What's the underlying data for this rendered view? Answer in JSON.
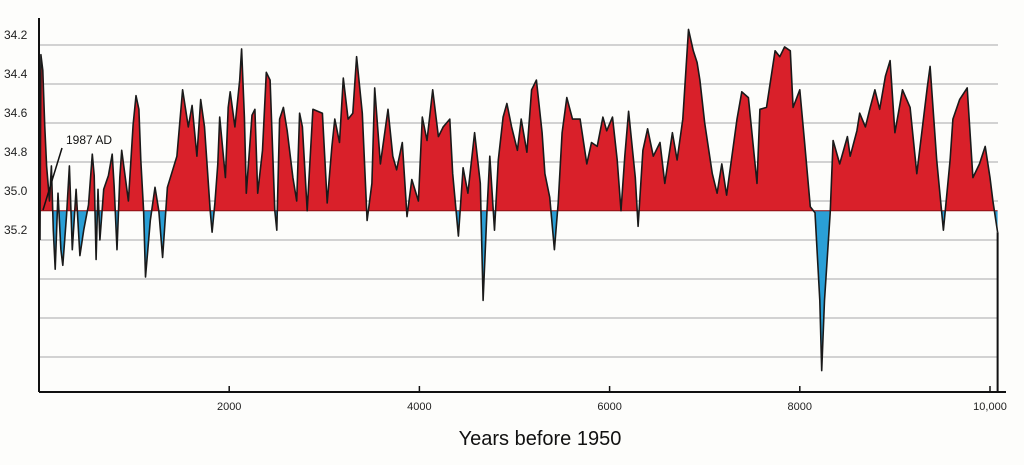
{
  "chart_data": {
    "type": "area",
    "title": "",
    "xlabel": "Years before 1950",
    "ylabel": "",
    "x_ticks": [
      "2000",
      "4000",
      "6000",
      "8000",
      "10,000"
    ],
    "x_tick_values": [
      2000,
      4000,
      6000,
      8000,
      10000
    ],
    "y_ticks": [
      "34.2",
      "34.4",
      "34.6",
      "34.8",
      "35.0",
      "35.2"
    ],
    "y_tick_values": [
      34.2,
      34.4,
      34.6,
      34.8,
      35.0,
      35.2
    ],
    "y_gridlines": [
      34.2,
      34.4,
      34.6,
      34.8,
      35.0,
      35.2,
      35.4,
      35.6,
      35.8
    ],
    "xlim": [
      0,
      10100
    ],
    "ylim": [
      34.05,
      35.95
    ],
    "y_inverted": true,
    "grid": true,
    "fill_baseline": 35.05,
    "colors": {
      "above": "#d9202a",
      "below": "#2a9fd6",
      "line": "#1a1a1a"
    },
    "annotation": {
      "text": "1987 AD",
      "x": 30,
      "y": 35.05
    },
    "points": [
      [
        10,
        35.2
      ],
      [
        20,
        34.25
      ],
      [
        40,
        34.33
      ],
      [
        60,
        34.61
      ],
      [
        80,
        34.82
      ],
      [
        110,
        35.0
      ],
      [
        130,
        34.82
      ],
      [
        150,
        35.15
      ],
      [
        170,
        35.35
      ],
      [
        200,
        34.96
      ],
      [
        230,
        35.25
      ],
      [
        250,
        35.33
      ],
      [
        290,
        35.07
      ],
      [
        320,
        34.82
      ],
      [
        350,
        35.25
      ],
      [
        390,
        34.94
      ],
      [
        430,
        35.28
      ],
      [
        470,
        35.15
      ],
      [
        520,
        35.02
      ],
      [
        560,
        34.76
      ],
      [
        580,
        34.87
      ],
      [
        600,
        35.3
      ],
      [
        620,
        34.94
      ],
      [
        640,
        35.2
      ],
      [
        680,
        34.94
      ],
      [
        730,
        34.87
      ],
      [
        770,
        34.76
      ],
      [
        790,
        34.92
      ],
      [
        820,
        35.25
      ],
      [
        850,
        34.88
      ],
      [
        870,
        34.74
      ],
      [
        940,
        35.0
      ],
      [
        990,
        34.61
      ],
      [
        1020,
        34.46
      ],
      [
        1050,
        34.53
      ],
      [
        1070,
        34.79
      ],
      [
        1100,
        35.05
      ],
      [
        1120,
        35.39
      ],
      [
        1170,
        35.1
      ],
      [
        1220,
        34.93
      ],
      [
        1260,
        35.05
      ],
      [
        1300,
        35.29
      ],
      [
        1350,
        34.93
      ],
      [
        1450,
        34.77
      ],
      [
        1510,
        34.43
      ],
      [
        1570,
        34.62
      ],
      [
        1610,
        34.51
      ],
      [
        1660,
        34.77
      ],
      [
        1700,
        34.48
      ],
      [
        1740,
        34.62
      ],
      [
        1800,
        35.05
      ],
      [
        1820,
        35.16
      ],
      [
        1850,
        35.01
      ],
      [
        1880,
        34.81
      ],
      [
        1900,
        34.57
      ],
      [
        1960,
        34.88
      ],
      [
        1990,
        34.52
      ],
      [
        2010,
        34.44
      ],
      [
        2060,
        34.62
      ],
      [
        2110,
        34.38
      ],
      [
        2130,
        34.22
      ],
      [
        2160,
        34.57
      ],
      [
        2180,
        34.96
      ],
      [
        2240,
        34.56
      ],
      [
        2270,
        34.53
      ],
      [
        2300,
        34.96
      ],
      [
        2350,
        34.74
      ],
      [
        2390,
        34.34
      ],
      [
        2430,
        34.38
      ],
      [
        2480,
        35.05
      ],
      [
        2500,
        35.15
      ],
      [
        2530,
        34.58
      ],
      [
        2570,
        34.52
      ],
      [
        2610,
        34.64
      ],
      [
        2670,
        34.88
      ],
      [
        2710,
        35.0
      ],
      [
        2740,
        34.55
      ],
      [
        2770,
        34.62
      ],
      [
        2820,
        35.05
      ],
      [
        2880,
        34.53
      ],
      [
        2980,
        34.55
      ],
      [
        3030,
        35.01
      ],
      [
        3080,
        34.72
      ],
      [
        3110,
        34.58
      ],
      [
        3160,
        34.7
      ],
      [
        3200,
        34.37
      ],
      [
        3250,
        34.58
      ],
      [
        3300,
        34.55
      ],
      [
        3340,
        34.26
      ],
      [
        3400,
        34.55
      ],
      [
        3450,
        35.1
      ],
      [
        3500,
        34.91
      ],
      [
        3530,
        34.42
      ],
      [
        3590,
        34.81
      ],
      [
        3670,
        34.53
      ],
      [
        3720,
        34.77
      ],
      [
        3760,
        34.84
      ],
      [
        3820,
        34.7
      ],
      [
        3870,
        35.08
      ],
      [
        3920,
        34.89
      ],
      [
        3990,
        35.0
      ],
      [
        4030,
        34.57
      ],
      [
        4080,
        34.69
      ],
      [
        4140,
        34.43
      ],
      [
        4200,
        34.67
      ],
      [
        4250,
        34.62
      ],
      [
        4320,
        34.58
      ],
      [
        4350,
        34.86
      ],
      [
        4410,
        35.18
      ],
      [
        4460,
        34.83
      ],
      [
        4510,
        34.96
      ],
      [
        4580,
        34.65
      ],
      [
        4640,
        34.91
      ],
      [
        4670,
        35.51
      ],
      [
        4710,
        35.06
      ],
      [
        4740,
        34.77
      ],
      [
        4790,
        35.15
      ],
      [
        4830,
        34.79
      ],
      [
        4880,
        34.57
      ],
      [
        4920,
        34.5
      ],
      [
        4970,
        34.62
      ],
      [
        5030,
        34.74
      ],
      [
        5070,
        34.58
      ],
      [
        5130,
        34.75
      ],
      [
        5180,
        34.43
      ],
      [
        5230,
        34.38
      ],
      [
        5290,
        34.65
      ],
      [
        5320,
        34.86
      ],
      [
        5370,
        34.98
      ],
      [
        5420,
        35.25
      ],
      [
        5460,
        35.01
      ],
      [
        5500,
        34.65
      ],
      [
        5550,
        34.47
      ],
      [
        5610,
        34.58
      ],
      [
        5690,
        34.58
      ],
      [
        5760,
        34.81
      ],
      [
        5810,
        34.7
      ],
      [
        5870,
        34.72
      ],
      [
        5930,
        34.57
      ],
      [
        5970,
        34.64
      ],
      [
        6030,
        34.57
      ],
      [
        6080,
        34.79
      ],
      [
        6120,
        35.05
      ],
      [
        6160,
        34.77
      ],
      [
        6200,
        34.54
      ],
      [
        6270,
        34.88
      ],
      [
        6300,
        35.13
      ],
      [
        6350,
        34.74
      ],
      [
        6400,
        34.63
      ],
      [
        6460,
        34.77
      ],
      [
        6530,
        34.7
      ],
      [
        6580,
        34.91
      ],
      [
        6660,
        34.65
      ],
      [
        6710,
        34.79
      ],
      [
        6770,
        34.58
      ],
      [
        6830,
        34.12
      ],
      [
        6880,
        34.23
      ],
      [
        6920,
        34.29
      ],
      [
        6950,
        34.38
      ],
      [
        7000,
        34.6
      ],
      [
        7080,
        34.86
      ],
      [
        7130,
        34.96
      ],
      [
        7180,
        34.81
      ],
      [
        7230,
        34.97
      ],
      [
        7340,
        34.58
      ],
      [
        7390,
        34.44
      ],
      [
        7460,
        34.47
      ],
      [
        7550,
        34.91
      ],
      [
        7580,
        34.53
      ],
      [
        7650,
        34.52
      ],
      [
        7740,
        34.23
      ],
      [
        7790,
        34.26
      ],
      [
        7840,
        34.21
      ],
      [
        7900,
        34.23
      ],
      [
        7930,
        34.52
      ],
      [
        8000,
        34.43
      ],
      [
        8050,
        34.7
      ],
      [
        8110,
        35.03
      ],
      [
        8160,
        35.06
      ],
      [
        8210,
        35.51
      ],
      [
        8230,
        35.87
      ],
      [
        8260,
        35.51
      ],
      [
        8320,
        35.06
      ],
      [
        8350,
        34.69
      ],
      [
        8420,
        34.81
      ],
      [
        8500,
        34.67
      ],
      [
        8530,
        34.77
      ],
      [
        8600,
        34.64
      ],
      [
        8630,
        34.55
      ],
      [
        8690,
        34.62
      ],
      [
        8740,
        34.52
      ],
      [
        8790,
        34.43
      ],
      [
        8840,
        34.53
      ],
      [
        8900,
        34.36
      ],
      [
        8950,
        34.28
      ],
      [
        9000,
        34.65
      ],
      [
        9080,
        34.43
      ],
      [
        9160,
        34.52
      ],
      [
        9230,
        34.86
      ],
      [
        9340,
        34.42
      ],
      [
        9370,
        34.31
      ],
      [
        9440,
        34.79
      ],
      [
        9510,
        35.15
      ],
      [
        9580,
        34.79
      ],
      [
        9610,
        34.58
      ],
      [
        9680,
        34.48
      ],
      [
        9760,
        34.42
      ],
      [
        9820,
        34.88
      ],
      [
        9890,
        34.81
      ],
      [
        9950,
        34.72
      ],
      [
        10000,
        34.88
      ],
      [
        10030,
        35.0
      ],
      [
        10070,
        35.13
      ],
      [
        10080,
        35.16
      ]
    ]
  }
}
